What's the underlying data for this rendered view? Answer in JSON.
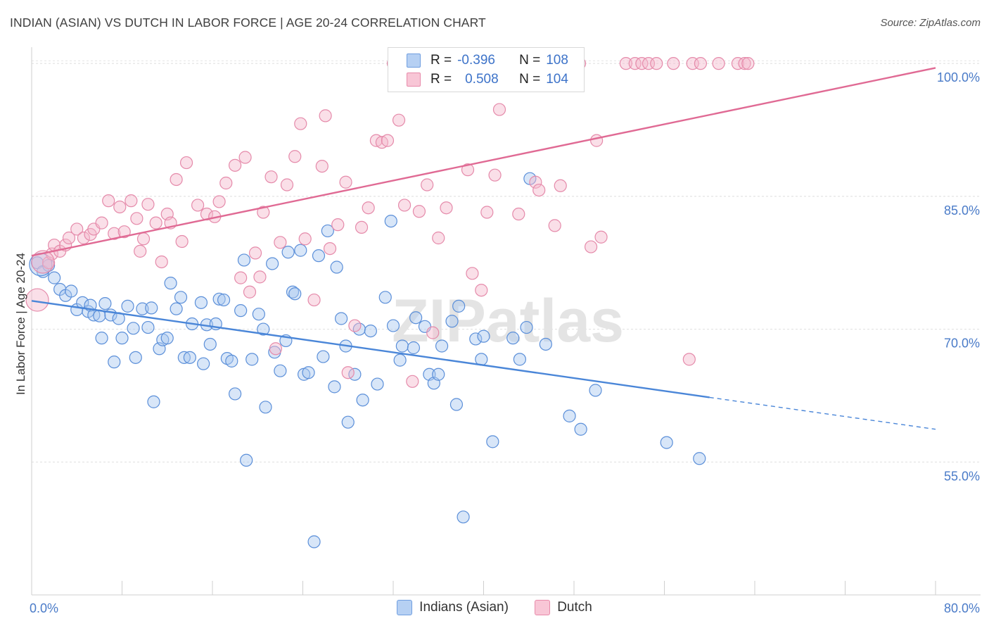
{
  "title": "INDIAN (ASIAN) VS DUTCH IN LABOR FORCE | AGE 20-24 CORRELATION CHART",
  "source": "Source: ZipAtlas.com",
  "watermark": "ZIPatlas",
  "colors": {
    "blue": "#4a86d8",
    "blue_fill": "#a9c8f0",
    "pink": "#e06a94",
    "pink_fill": "#f5b8cc",
    "tick_label": "#4a7bc8"
  },
  "legend_top": {
    "rows": [
      {
        "r_label": "R =",
        "r_value": "-0.396",
        "n_label": "N =",
        "n_value": "108"
      },
      {
        "r_label": "R =",
        "r_value": "0.508",
        "n_label": "N =",
        "n_value": "104"
      }
    ]
  },
  "legend_bottom": {
    "items": [
      "Indians (Asian)",
      "Dutch"
    ]
  },
  "chart_data": {
    "type": "scatter",
    "title": "INDIAN (ASIAN) VS DUTCH IN LABOR FORCE | AGE 20-24 CORRELATION CHART",
    "xlabel": "",
    "ylabel": "In Labor Force | Age 20-24",
    "xlim": [
      0,
      80
    ],
    "ylim": [
      40,
      102
    ],
    "x_tick_labels": [
      "0.0%",
      "80.0%"
    ],
    "y_ticks": [
      55,
      70,
      85,
      100
    ],
    "y_tick_labels": [
      "55.0%",
      "70.0%",
      "85.0%",
      "100.0%"
    ],
    "grid": true,
    "legend": "top-center",
    "series": [
      {
        "name": "Indians (Asian)",
        "r": -0.396,
        "n": 108,
        "trend": {
          "x0": 0,
          "y0": 73.2,
          "x1": 60,
          "y1": 62.3,
          "dash_x1": 80,
          "dash_y1": 58.7
        },
        "points": [
          [
            0.5,
            77.5
          ],
          [
            1,
            76.5
          ],
          [
            1.5,
            77.2
          ],
          [
            2,
            75.8
          ],
          [
            2.5,
            74.5
          ],
          [
            3,
            73.8
          ],
          [
            3.5,
            74.3
          ],
          [
            4,
            72.2
          ],
          [
            4.5,
            73
          ],
          [
            5,
            72
          ],
          [
            5.2,
            72.7
          ],
          [
            5.5,
            71.6
          ],
          [
            6,
            71.5
          ],
          [
            6.2,
            69
          ],
          [
            6.5,
            72.9
          ],
          [
            7,
            71.6
          ],
          [
            7.3,
            66.3
          ],
          [
            7.7,
            71.2
          ],
          [
            8,
            69
          ],
          [
            8.5,
            72.6
          ],
          [
            9,
            70.1
          ],
          [
            9.2,
            66.8
          ],
          [
            9.8,
            72.3
          ],
          [
            10.3,
            70.2
          ],
          [
            10.6,
            72.4
          ],
          [
            10.8,
            61.8
          ],
          [
            11.3,
            67.8
          ],
          [
            11.6,
            68.8
          ],
          [
            12,
            69
          ],
          [
            12.3,
            75.2
          ],
          [
            12.8,
            72.3
          ],
          [
            13.2,
            73.6
          ],
          [
            13.5,
            66.8
          ],
          [
            14,
            66.8
          ],
          [
            14.2,
            70.6
          ],
          [
            15,
            73
          ],
          [
            15.2,
            66.1
          ],
          [
            15.5,
            70.5
          ],
          [
            15.8,
            68.3
          ],
          [
            16.3,
            70.6
          ],
          [
            16.6,
            73.4
          ],
          [
            17,
            73.3
          ],
          [
            17.3,
            66.7
          ],
          [
            17.7,
            66.4
          ],
          [
            18,
            62.7
          ],
          [
            18.5,
            72.1
          ],
          [
            18.8,
            77.8
          ],
          [
            19,
            55.2
          ],
          [
            19.5,
            66.6
          ],
          [
            20.1,
            71.7
          ],
          [
            20.5,
            70
          ],
          [
            20.7,
            61.2
          ],
          [
            21.3,
            77.4
          ],
          [
            21.5,
            67.4
          ],
          [
            22,
            65.3
          ],
          [
            22.5,
            68.7
          ],
          [
            22.7,
            78.7
          ],
          [
            23.1,
            74.2
          ],
          [
            23.3,
            74
          ],
          [
            23.8,
            78.9
          ],
          [
            24.1,
            64.9
          ],
          [
            24.5,
            65.1
          ],
          [
            25,
            46
          ],
          [
            25.4,
            78.3
          ],
          [
            25.8,
            66.9
          ],
          [
            26.2,
            81.1
          ],
          [
            26.8,
            63.5
          ],
          [
            27,
            77
          ],
          [
            27.4,
            71.2
          ],
          [
            27.8,
            68.1
          ],
          [
            28,
            59.5
          ],
          [
            28.6,
            64.9
          ],
          [
            29,
            70
          ],
          [
            29.3,
            62
          ],
          [
            30,
            69.8
          ],
          [
            30.6,
            63.8
          ],
          [
            31.3,
            73.6
          ],
          [
            31.8,
            82.2
          ],
          [
            32,
            70.4
          ],
          [
            32.6,
            66.5
          ],
          [
            32.8,
            68.1
          ],
          [
            33.8,
            67.9
          ],
          [
            34,
            71.3
          ],
          [
            34.8,
            70.3
          ],
          [
            35.2,
            64.9
          ],
          [
            35.6,
            63.9
          ],
          [
            36,
            64.9
          ],
          [
            36.3,
            68.1
          ],
          [
            37.2,
            70.9
          ],
          [
            37.6,
            61.5
          ],
          [
            37.8,
            72.6
          ],
          [
            38.2,
            48.8
          ],
          [
            39.3,
            68.9
          ],
          [
            39.8,
            66.6
          ],
          [
            40,
            69.2
          ],
          [
            40.8,
            57.3
          ],
          [
            42.6,
            69
          ],
          [
            43.2,
            66.6
          ],
          [
            43.8,
            70.2
          ],
          [
            44.1,
            87
          ],
          [
            45.5,
            68.3
          ],
          [
            47.6,
            60.2
          ],
          [
            48.6,
            58.7
          ],
          [
            49.9,
            63.1
          ],
          [
            56.2,
            57.2
          ],
          [
            59.1,
            55.4
          ]
        ],
        "big_points": [
          [
            0.8,
            77.3
          ]
        ]
      },
      {
        "name": "Dutch",
        "r": 0.508,
        "n": 104,
        "trend": {
          "x0": 0,
          "y0": 78.3,
          "x1": 80,
          "y1": 99.5
        },
        "points": [
          [
            1.5,
            77.5
          ],
          [
            1.8,
            78.5
          ],
          [
            2,
            79.5
          ],
          [
            2.5,
            78.8
          ],
          [
            3,
            79.5
          ],
          [
            3.3,
            80.3
          ],
          [
            4,
            81.3
          ],
          [
            4.6,
            80.3
          ],
          [
            5.2,
            80.7
          ],
          [
            5.5,
            81.3
          ],
          [
            6.2,
            82
          ],
          [
            6.8,
            84.5
          ],
          [
            7.3,
            80.8
          ],
          [
            7.8,
            83.8
          ],
          [
            8.2,
            81
          ],
          [
            8.8,
            84.5
          ],
          [
            9.3,
            82.5
          ],
          [
            9.6,
            78.8
          ],
          [
            9.9,
            80.2
          ],
          [
            10.3,
            84.1
          ],
          [
            11,
            82
          ],
          [
            11.5,
            77.6
          ],
          [
            12,
            83
          ],
          [
            12.3,
            82
          ],
          [
            12.8,
            86.9
          ],
          [
            13.3,
            79.9
          ],
          [
            13.7,
            88.8
          ],
          [
            14.7,
            84
          ],
          [
            15.5,
            83
          ],
          [
            16.2,
            82.7
          ],
          [
            16.6,
            84.4
          ],
          [
            17.2,
            86.5
          ],
          [
            18,
            88.5
          ],
          [
            18.5,
            75.8
          ],
          [
            18.9,
            89.4
          ],
          [
            19.3,
            74.2
          ],
          [
            19.8,
            78.6
          ],
          [
            20.2,
            75.9
          ],
          [
            20.5,
            83.2
          ],
          [
            21.2,
            87.2
          ],
          [
            21.6,
            67.8
          ],
          [
            22,
            79.8
          ],
          [
            22.6,
            86.3
          ],
          [
            23.3,
            89.5
          ],
          [
            23.8,
            93.2
          ],
          [
            24.2,
            80.2
          ],
          [
            25,
            73.3
          ],
          [
            25.7,
            88.4
          ],
          [
            26,
            94.1
          ],
          [
            26.4,
            79.1
          ],
          [
            27.1,
            81.8
          ],
          [
            27.8,
            86.6
          ],
          [
            28,
            65.1
          ],
          [
            28.6,
            70.4
          ],
          [
            29.2,
            81.5
          ],
          [
            29.8,
            83.7
          ],
          [
            30.5,
            91.3
          ],
          [
            31,
            91.1
          ],
          [
            31.5,
            91.3
          ],
          [
            32,
            100
          ],
          [
            32.5,
            93.6
          ],
          [
            33,
            84
          ],
          [
            33.7,
            64.1
          ],
          [
            34.3,
            83.3
          ],
          [
            35,
            86.3
          ],
          [
            35.5,
            69.6
          ],
          [
            36,
            80.3
          ],
          [
            36.7,
            83.7
          ],
          [
            37.3,
            100
          ],
          [
            38,
            100
          ],
          [
            38.6,
            88
          ],
          [
            39,
            76.3
          ],
          [
            39.8,
            74.4
          ],
          [
            40.3,
            83.2
          ],
          [
            41,
            87.4
          ],
          [
            41.4,
            94.8
          ],
          [
            43.1,
            83
          ],
          [
            43.9,
            100
          ],
          [
            44.6,
            86.6
          ],
          [
            44.9,
            85.7
          ],
          [
            46.3,
            81.7
          ],
          [
            46.8,
            86.2
          ],
          [
            48,
            100
          ],
          [
            48.5,
            100
          ],
          [
            49.5,
            79.3
          ],
          [
            50,
            91.3
          ],
          [
            50.4,
            80.4
          ],
          [
            52.6,
            100
          ],
          [
            53.4,
            100
          ],
          [
            54,
            100
          ],
          [
            54.6,
            100
          ],
          [
            55.3,
            100
          ],
          [
            56.8,
            100
          ],
          [
            58.5,
            100
          ],
          [
            59.2,
            100
          ],
          [
            60.8,
            100
          ],
          [
            62.5,
            100
          ],
          [
            63.1,
            100
          ],
          [
            63.4,
            100
          ],
          [
            58.2,
            66.6
          ]
        ],
        "big_points": [
          [
            0.5,
            73.3
          ],
          [
            1,
            77.6
          ]
        ]
      }
    ]
  }
}
